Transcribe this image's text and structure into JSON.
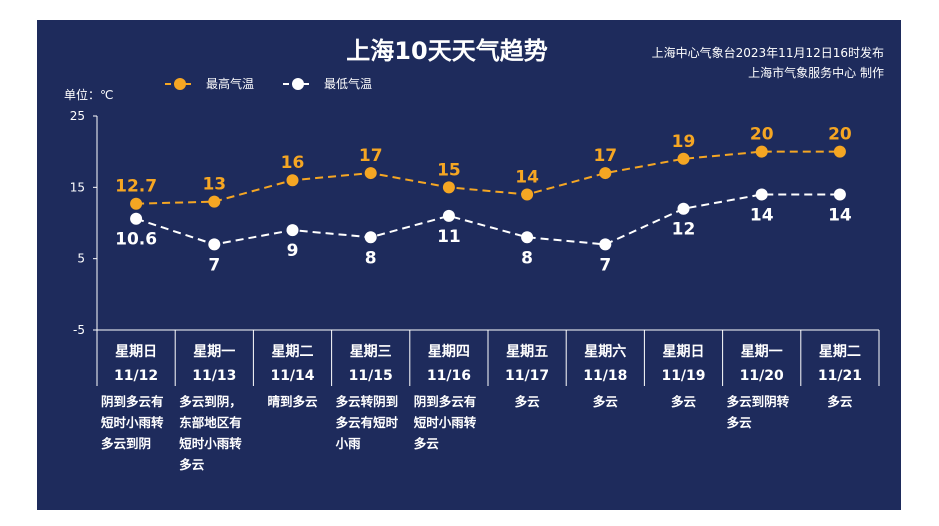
{
  "colors": {
    "background": "#1e2b5c",
    "high": "#f5a623",
    "low": "#ffffff",
    "text": "#ffffff"
  },
  "header": {
    "title": "上海10天天气趋势",
    "source_line1": "上海中心气象台2023年11月12日16时发布",
    "source_line2": "上海市气象服务中心 制作"
  },
  "chart_data": {
    "type": "line",
    "title": "上海10天天气趋势",
    "unit_label": "单位：℃",
    "ylim": [
      -5,
      25
    ],
    "yticks": [
      25,
      15,
      5,
      -5
    ],
    "legend_position": "top-left",
    "categories": [
      "星期日 11/12",
      "星期一 11/13",
      "星期二 11/14",
      "星期三 11/15",
      "星期四 11/16",
      "星期五 11/17",
      "星期六 11/18",
      "星期日 11/19",
      "星期一 11/20",
      "星期二 11/21"
    ],
    "weekdays": [
      "星期日",
      "星期一",
      "星期二",
      "星期三",
      "星期四",
      "星期五",
      "星期六",
      "星期日",
      "星期一",
      "星期二"
    ],
    "dates": [
      "11/12",
      "11/13",
      "11/14",
      "11/15",
      "11/16",
      "11/17",
      "11/18",
      "11/19",
      "11/20",
      "11/21"
    ],
    "series": [
      {
        "name": "最高气温",
        "color": "#f5a623",
        "values": [
          12.7,
          13,
          16,
          17,
          15,
          14,
          17,
          19,
          20,
          20
        ]
      },
      {
        "name": "最低气温",
        "color": "#ffffff",
        "values": [
          10.6,
          7,
          9,
          8,
          11,
          8,
          7,
          12,
          14,
          14
        ]
      }
    ],
    "weather": [
      [
        "阴到多云有",
        "短时小雨转",
        "多云到阴"
      ],
      [
        "多云到阴，",
        "东部地区有",
        "短时小雨转",
        "多云"
      ],
      [
        "晴到多云"
      ],
      [
        "多云转阴到",
        "多云有短时",
        "小雨"
      ],
      [
        "阴到多云有",
        "短时小雨转",
        "多云"
      ],
      [
        "多云"
      ],
      [
        "多云"
      ],
      [
        "多云"
      ],
      [
        "多云到阴转",
        "多云"
      ],
      [
        "多云"
      ]
    ]
  }
}
